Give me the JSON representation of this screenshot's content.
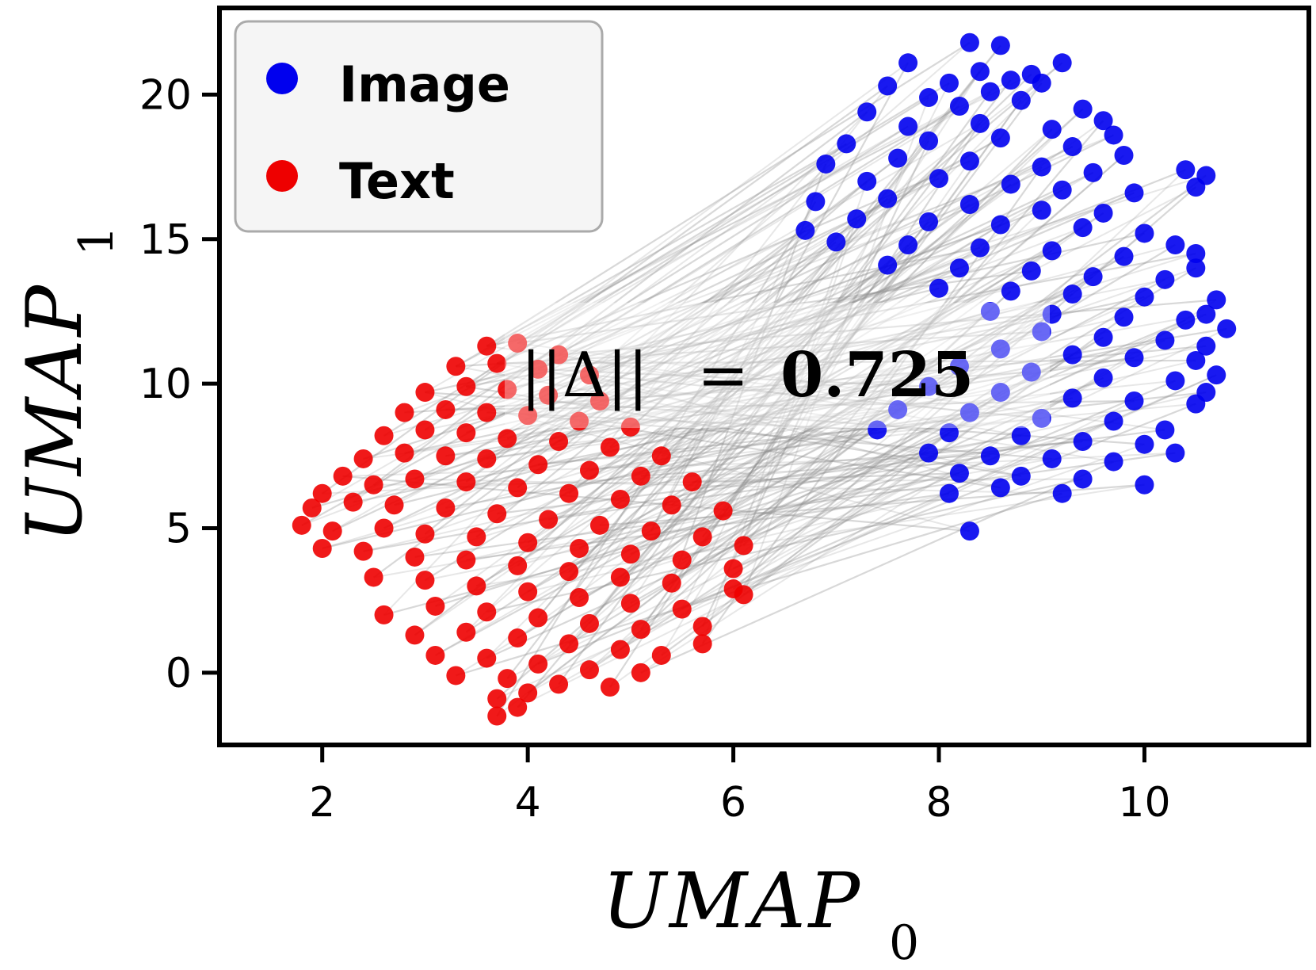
{
  "chart_data": {
    "type": "scatter",
    "xlabel": "UMAP",
    "xlabel_subscript": "0",
    "ylabel": "UMAP",
    "ylabel_subscript": "1",
    "xlim": [
      1.0,
      11.6
    ],
    "ylim": [
      -2.5,
      23.0
    ],
    "xticks": [
      2,
      4,
      6,
      8,
      10
    ],
    "xtick_labels": [
      "2",
      "4",
      "6",
      "8",
      "10"
    ],
    "yticks": [
      0,
      5,
      10,
      15,
      20
    ],
    "ytick_labels": [
      "0",
      "5",
      "10",
      "15",
      "20"
    ],
    "grid": false,
    "legend": {
      "placement": "top-left",
      "entries": [
        {
          "label": "Image",
          "color": "#0000ee"
        },
        {
          "label": "Text",
          "color": "#ee0000"
        }
      ]
    },
    "annotation": {
      "norm_symbol": "||Δ||",
      "equals": "=",
      "value": "0.725"
    },
    "connector_color": "#909090",
    "series": [
      {
        "name": "Image",
        "color": "#0000ee",
        "points": [
          [
            8.3,
            21.8
          ],
          [
            8.6,
            21.7
          ],
          [
            7.7,
            21.1
          ],
          [
            9.2,
            21.1
          ],
          [
            8.4,
            20.8
          ],
          [
            8.9,
            20.7
          ],
          [
            7.5,
            20.3
          ],
          [
            8.1,
            20.4
          ],
          [
            8.7,
            20.5
          ],
          [
            9.0,
            20.4
          ],
          [
            7.9,
            19.9
          ],
          [
            8.5,
            20.1
          ],
          [
            9.4,
            19.5
          ],
          [
            7.3,
            19.4
          ],
          [
            8.2,
            19.6
          ],
          [
            8.8,
            19.8
          ],
          [
            9.6,
            19.1
          ],
          [
            7.7,
            18.9
          ],
          [
            8.4,
            19.0
          ],
          [
            9.1,
            18.8
          ],
          [
            9.7,
            18.6
          ],
          [
            7.1,
            18.3
          ],
          [
            7.9,
            18.4
          ],
          [
            8.6,
            18.5
          ],
          [
            9.3,
            18.2
          ],
          [
            9.8,
            17.9
          ],
          [
            6.9,
            17.6
          ],
          [
            7.6,
            17.8
          ],
          [
            8.3,
            17.7
          ],
          [
            9.0,
            17.5
          ],
          [
            9.5,
            17.3
          ],
          [
            10.4,
            17.4
          ],
          [
            10.6,
            17.2
          ],
          [
            10.5,
            16.8
          ],
          [
            7.3,
            17.0
          ],
          [
            8.0,
            17.1
          ],
          [
            8.7,
            16.9
          ],
          [
            9.2,
            16.7
          ],
          [
            9.9,
            16.6
          ],
          [
            6.8,
            16.3
          ],
          [
            7.5,
            16.4
          ],
          [
            8.3,
            16.2
          ],
          [
            9.0,
            16.0
          ],
          [
            9.6,
            15.9
          ],
          [
            6.7,
            15.3
          ],
          [
            7.2,
            15.7
          ],
          [
            7.9,
            15.6
          ],
          [
            8.6,
            15.5
          ],
          [
            9.4,
            15.4
          ],
          [
            10.0,
            15.2
          ],
          [
            10.3,
            14.8
          ],
          [
            7.0,
            14.9
          ],
          [
            7.7,
            14.8
          ],
          [
            8.4,
            14.7
          ],
          [
            9.1,
            14.6
          ],
          [
            9.8,
            14.4
          ],
          [
            10.5,
            14.5
          ],
          [
            10.5,
            14.0
          ],
          [
            7.5,
            14.1
          ],
          [
            8.2,
            14.0
          ],
          [
            8.9,
            13.9
          ],
          [
            9.5,
            13.7
          ],
          [
            10.2,
            13.6
          ],
          [
            8.0,
            13.3
          ],
          [
            8.7,
            13.2
          ],
          [
            9.3,
            13.1
          ],
          [
            10.0,
            13.0
          ],
          [
            10.7,
            12.9
          ],
          [
            10.6,
            12.4
          ],
          [
            8.5,
            12.5
          ],
          [
            9.1,
            12.4
          ],
          [
            9.8,
            12.3
          ],
          [
            10.4,
            12.2
          ],
          [
            10.8,
            11.9
          ],
          [
            9.0,
            11.8
          ],
          [
            9.6,
            11.6
          ],
          [
            10.2,
            11.5
          ],
          [
            10.6,
            11.3
          ],
          [
            8.6,
            11.2
          ],
          [
            9.3,
            11.0
          ],
          [
            9.9,
            10.9
          ],
          [
            10.5,
            10.8
          ],
          [
            10.7,
            10.3
          ],
          [
            8.2,
            10.6
          ],
          [
            8.9,
            10.4
          ],
          [
            9.6,
            10.2
          ],
          [
            10.3,
            10.1
          ],
          [
            10.6,
            9.7
          ],
          [
            7.9,
            9.9
          ],
          [
            8.6,
            9.7
          ],
          [
            9.3,
            9.5
          ],
          [
            9.9,
            9.4
          ],
          [
            10.5,
            9.3
          ],
          [
            7.6,
            9.1
          ],
          [
            8.3,
            9.0
          ],
          [
            9.0,
            8.8
          ],
          [
            9.7,
            8.7
          ],
          [
            10.2,
            8.4
          ],
          [
            7.4,
            8.4
          ],
          [
            8.1,
            8.3
          ],
          [
            8.8,
            8.2
          ],
          [
            9.4,
            8.0
          ],
          [
            10.0,
            7.9
          ],
          [
            7.9,
            7.6
          ],
          [
            8.5,
            7.5
          ],
          [
            9.1,
            7.4
          ],
          [
            9.7,
            7.3
          ],
          [
            10.3,
            7.6
          ],
          [
            8.2,
            6.9
          ],
          [
            8.8,
            6.8
          ],
          [
            9.4,
            6.7
          ],
          [
            10.0,
            6.5
          ],
          [
            8.6,
            6.4
          ],
          [
            9.2,
            6.2
          ],
          [
            8.1,
            6.2
          ],
          [
            8.3,
            4.9
          ]
        ]
      },
      {
        "name": "Text",
        "color": "#ee0000",
        "points": [
          [
            3.6,
            11.3
          ],
          [
            3.9,
            11.4
          ],
          [
            4.3,
            11.0
          ],
          [
            3.3,
            10.6
          ],
          [
            3.7,
            10.7
          ],
          [
            4.1,
            10.5
          ],
          [
            4.6,
            10.3
          ],
          [
            3.0,
            9.7
          ],
          [
            3.4,
            9.9
          ],
          [
            3.8,
            9.8
          ],
          [
            4.2,
            9.6
          ],
          [
            4.7,
            9.4
          ],
          [
            2.8,
            9.0
          ],
          [
            3.2,
            9.1
          ],
          [
            3.6,
            9.0
          ],
          [
            4.0,
            8.9
          ],
          [
            4.5,
            8.7
          ],
          [
            5.0,
            8.5
          ],
          [
            2.6,
            8.2
          ],
          [
            3.0,
            8.4
          ],
          [
            3.4,
            8.3
          ],
          [
            3.8,
            8.1
          ],
          [
            4.3,
            8.0
          ],
          [
            4.8,
            7.8
          ],
          [
            5.3,
            7.5
          ],
          [
            2.4,
            7.4
          ],
          [
            2.8,
            7.6
          ],
          [
            3.2,
            7.5
          ],
          [
            3.6,
            7.4
          ],
          [
            4.1,
            7.2
          ],
          [
            4.6,
            7.0
          ],
          [
            5.1,
            6.8
          ],
          [
            5.6,
            6.6
          ],
          [
            2.2,
            6.8
          ],
          [
            2.0,
            6.2
          ],
          [
            2.5,
            6.5
          ],
          [
            2.9,
            6.7
          ],
          [
            3.4,
            6.6
          ],
          [
            3.9,
            6.4
          ],
          [
            4.4,
            6.2
          ],
          [
            4.9,
            6.0
          ],
          [
            5.4,
            5.8
          ],
          [
            5.9,
            5.6
          ],
          [
            1.9,
            5.7
          ],
          [
            2.3,
            5.9
          ],
          [
            2.7,
            5.8
          ],
          [
            3.2,
            5.7
          ],
          [
            3.7,
            5.5
          ],
          [
            4.2,
            5.3
          ],
          [
            4.7,
            5.1
          ],
          [
            5.2,
            4.9
          ],
          [
            5.7,
            4.7
          ],
          [
            6.1,
            4.4
          ],
          [
            1.8,
            5.1
          ],
          [
            2.1,
            4.9
          ],
          [
            2.6,
            5.0
          ],
          [
            3.0,
            4.8
          ],
          [
            3.5,
            4.7
          ],
          [
            4.0,
            4.5
          ],
          [
            4.5,
            4.3
          ],
          [
            5.0,
            4.1
          ],
          [
            5.5,
            3.9
          ],
          [
            6.0,
            3.6
          ],
          [
            2.0,
            4.3
          ],
          [
            2.4,
            4.2
          ],
          [
            2.9,
            4.0
          ],
          [
            3.4,
            3.9
          ],
          [
            3.9,
            3.7
          ],
          [
            4.4,
            3.5
          ],
          [
            4.9,
            3.3
          ],
          [
            5.4,
            3.1
          ],
          [
            6.0,
            2.9
          ],
          [
            2.5,
            3.3
          ],
          [
            3.0,
            3.2
          ],
          [
            3.5,
            3.0
          ],
          [
            4.0,
            2.8
          ],
          [
            4.5,
            2.6
          ],
          [
            5.0,
            2.4
          ],
          [
            5.5,
            2.2
          ],
          [
            6.1,
            2.7
          ],
          [
            2.6,
            2.0
          ],
          [
            3.1,
            2.3
          ],
          [
            3.6,
            2.1
          ],
          [
            4.1,
            1.9
          ],
          [
            4.6,
            1.7
          ],
          [
            5.1,
            1.5
          ],
          [
            5.7,
            1.6
          ],
          [
            5.7,
            1.0
          ],
          [
            2.9,
            1.3
          ],
          [
            3.4,
            1.4
          ],
          [
            3.9,
            1.2
          ],
          [
            4.4,
            1.0
          ],
          [
            4.9,
            0.8
          ],
          [
            5.3,
            0.6
          ],
          [
            3.1,
            0.6
          ],
          [
            3.6,
            0.5
          ],
          [
            4.1,
            0.3
          ],
          [
            4.6,
            0.1
          ],
          [
            5.1,
            0.0
          ],
          [
            3.3,
            -0.1
          ],
          [
            3.8,
            -0.2
          ],
          [
            4.3,
            -0.4
          ],
          [
            4.8,
            -0.5
          ],
          [
            3.7,
            -0.9
          ],
          [
            4.0,
            -0.7
          ],
          [
            3.7,
            -1.5
          ],
          [
            3.9,
            -1.2
          ]
        ]
      }
    ]
  }
}
